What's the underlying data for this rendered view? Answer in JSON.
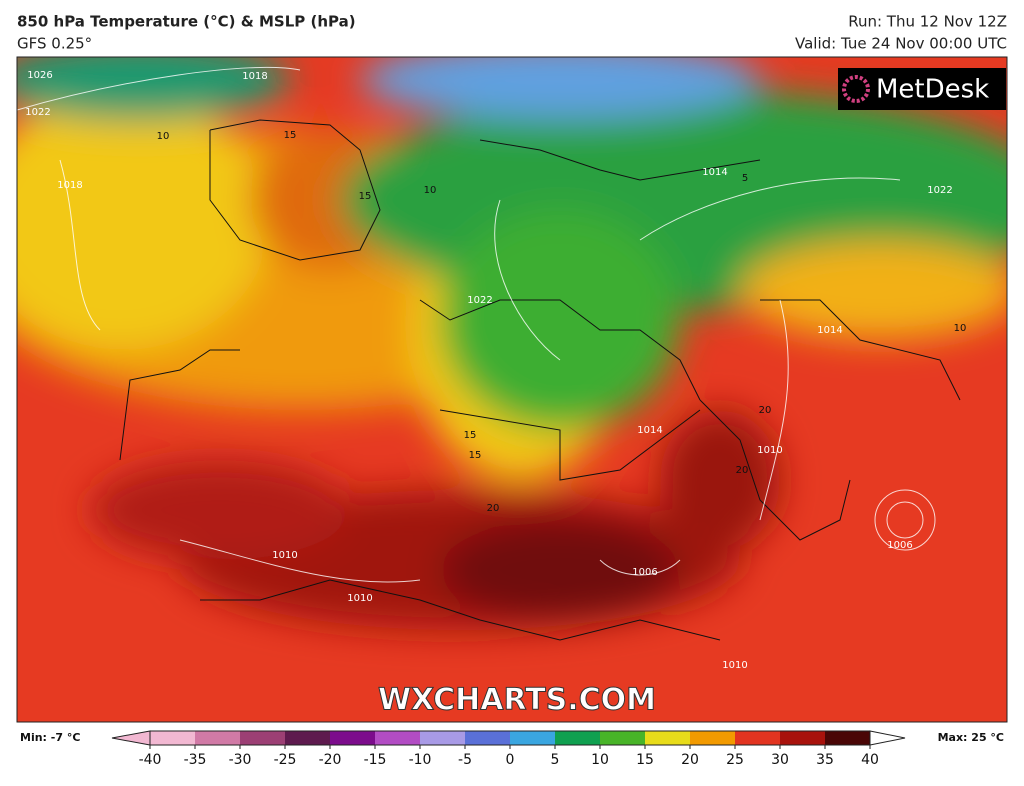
{
  "header": {
    "title": "850 hPa Temperature (°C) & MSLP (hPa)",
    "model": "GFS 0.25°",
    "run": "Run: Thu 12 Nov 12Z",
    "valid": "Valid: Tue 24 Nov 00:00 UTC"
  },
  "logo": "MetDesk",
  "watermark": "WXCHARTS.COM",
  "pressure_labels": [
    "1026",
    "1018",
    "1022",
    "1018",
    "1014",
    "1022",
    "1022",
    "1014",
    "1010",
    "1014",
    "1006",
    "1006",
    "1010",
    "1010",
    "1010"
  ],
  "temperature_labels": [
    "10",
    "15",
    "15",
    "10",
    "10",
    "5",
    "15",
    "15",
    "20",
    "20",
    "20"
  ],
  "colorbar": {
    "min_label": "Min: -7 °C",
    "max_label": "Max: 25 °C",
    "lim": [
      -40,
      40
    ],
    "ticks": [
      -40,
      -35,
      -30,
      -25,
      -20,
      -15,
      -10,
      -5,
      0,
      5,
      10,
      15,
      20,
      25,
      30,
      35,
      40
    ],
    "colors": [
      "#f2b8d2",
      "#d17aa6",
      "#9c3f74",
      "#5e1a4e",
      "#7c0c8c",
      "#b24cc4",
      "#a89ae6",
      "#5a70d8",
      "#3aa6e0",
      "#10a050",
      "#48b428",
      "#e8dc1a",
      "#f29a00",
      "#e23420",
      "#a8120c",
      "#4a0606"
    ]
  }
}
